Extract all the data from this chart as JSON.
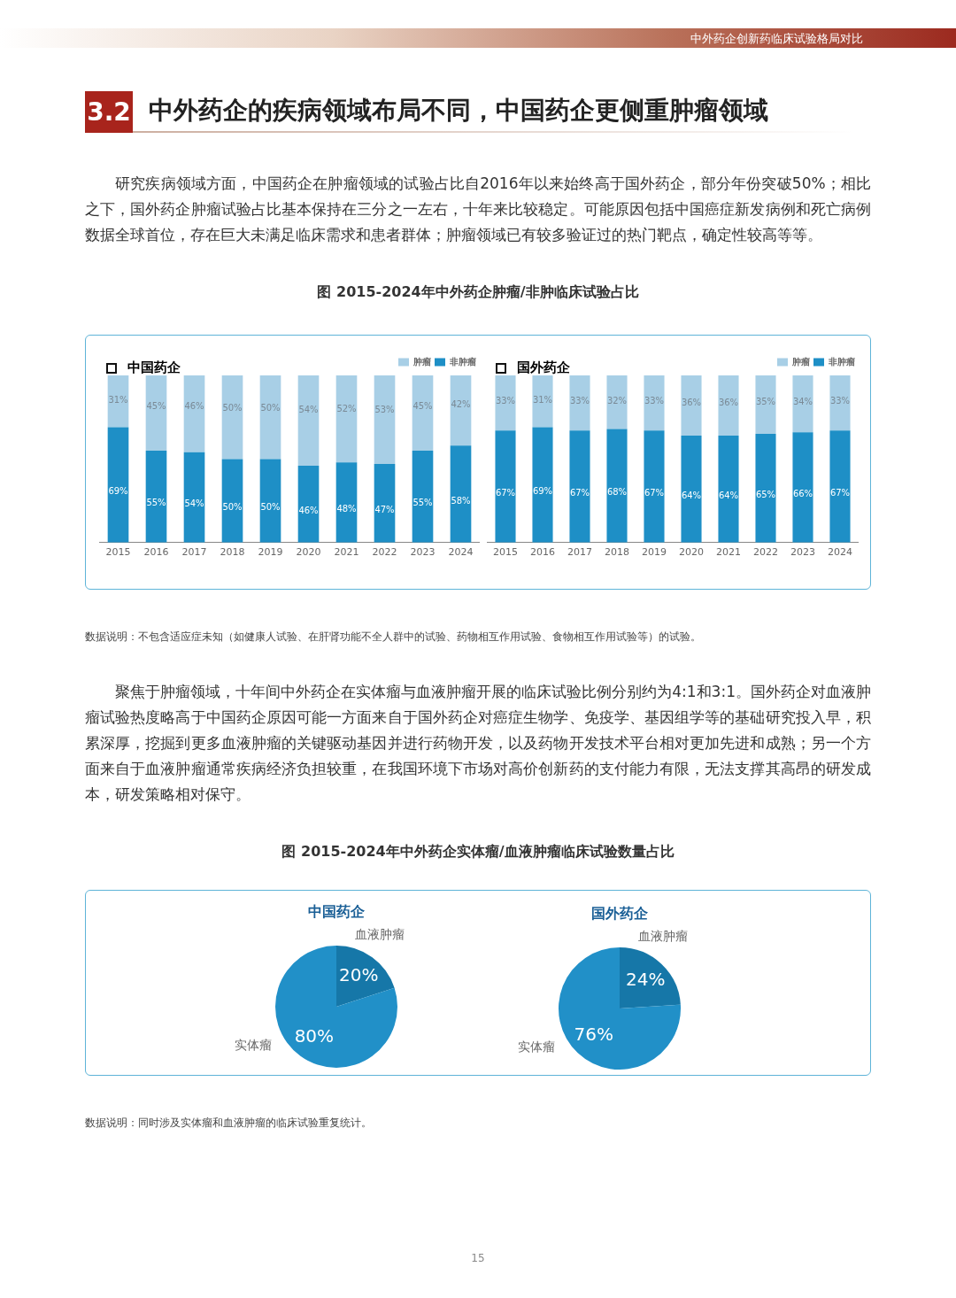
{
  "chart_data": [
    {
      "type": "bar",
      "stacked": true,
      "title": "中国药企",
      "subtitle": "图 2015-2024年中外药企肿瘤/非肿临床试验占比",
      "legend": "top right",
      "tick_labels": "x",
      "grid": false,
      "annotations": [
        "中外药企创新药临床试验格局对比",
        "3.2",
        "中外药企的疾病领域布局不同，中国药企更侧重肿瘤领域",
        "研究疾病领域方面，中国药企在肿瘤领域的试验占比自2016年以来始终高于国外药企，部分年份突破50%；相比之下，国外药企肿瘤试验占比基本保持在三分之一左右，十年来比较稳定。可能原因包括中国癌症新发病例和死亡病例数据全球首位，存在巨大未满足临床需求和患者群体；肿瘤领域已有较多验证过的热门靶点，确定性较高等等。"
      ],
      "categories": [
        "2015",
        "2016",
        "2017",
        "2018",
        "2019",
        "2020",
        "2021",
        "2022",
        "2023",
        "2024"
      ],
      "series": [
        {
          "name": "非肿瘤",
          "color": "#1e8fc6",
          "values": [
            69,
            55,
            54,
            50,
            50,
            46,
            48,
            47,
            55,
            58
          ],
          "value_labels": [
            "69%",
            "55%",
            "54%",
            "50%",
            "50%",
            "46%",
            "48%",
            "47%",
            "55%",
            "58%"
          ]
        },
        {
          "name": "肿瘤",
          "color": "#a8cfe6",
          "values": [
            31,
            45,
            46,
            50,
            50,
            54,
            52,
            53,
            45,
            42
          ],
          "value_labels": [
            "31%",
            "45%",
            "46%",
            "50%",
            "50%",
            "54%",
            "52%",
            "53%",
            "45%",
            "42%"
          ]
        }
      ]
    },
    {
      "type": "bar",
      "stacked": true,
      "title": "国外药企",
      "legend": "top right",
      "tick_labels": "x",
      "grid": false,
      "annotations": [
        "数据说明：不包含适应症未知（如健康人试验、在肝肾功能不全人群中的试验、药物相互作用试验、食物相互作用试验等）的试验。",
        "聚焦于肿瘤领域，十年间中外药企在实体瘤与血液肿瘤开展的临床试验比例分别约为4:1和3:1。国外药企对血液肿瘤试验热度略高于中国药企原因可能一方面来自于国外药企对癌症生物学、免疫学、基因组学等的基础研究投入早，积累深厚，挖掘到更多血液肿瘤的关键驱动基因并进行药物开发，以及药物开发技术平台相对更加先进和成熟；另一个方面来自于血液肿瘤通常疾病经济负担较重，在我国环境下市场对高价创新药的支付能力有限，无法支撑其高昂的研发成本，研发策略相对保守。"
      ],
      "categories": [
        "2015",
        "2016",
        "2017",
        "2018",
        "2019",
        "2020",
        "2021",
        "2022",
        "2023",
        "2024"
      ],
      "series": [
        {
          "name": "非肿瘤",
          "color": "#1e8fc6",
          "values": [
            67,
            69,
            67,
            68,
            67,
            64,
            64,
            65,
            66,
            67
          ],
          "value_labels": [
            "67%",
            "69%",
            "67%",
            "68%",
            "67%",
            "64%",
            "64%",
            "65%",
            "66%",
            "67%"
          ]
        },
        {
          "name": "肿瘤",
          "color": "#a8cfe6",
          "values": [
            33,
            31,
            33,
            32,
            33,
            36,
            36,
            35,
            34,
            33
          ],
          "value_labels": [
            "33%",
            "31%",
            "33%",
            "32%",
            "33%",
            "36%",
            "36%",
            "35%",
            "34%",
            "33%"
          ]
        }
      ]
    },
    {
      "type": "pie",
      "title": "中国药企",
      "subtitle": "图 2015-2024年中外药企实体瘤/血液肿瘤临床试验数量占比",
      "legend": false,
      "categories": [
        "血液肿瘤",
        "实体瘤"
      ],
      "values": [
        20,
        80
      ],
      "colors": [
        "#1677a8",
        "#2190c8"
      ],
      "value_labels": [
        "20%",
        "80%"
      ]
    },
    {
      "type": "pie",
      "title": "国外药企",
      "legend": false,
      "annotations": [
        "数据说明：同时涉及实体瘤和血液肿瘤的临床试验重复统计。",
        "15"
      ],
      "categories": [
        "血液肿瘤",
        "实体瘤"
      ],
      "values": [
        24,
        76
      ],
      "colors": [
        "#1677a8",
        "#2190c8"
      ],
      "value_labels": [
        "24%",
        "76%"
      ]
    }
  ]
}
